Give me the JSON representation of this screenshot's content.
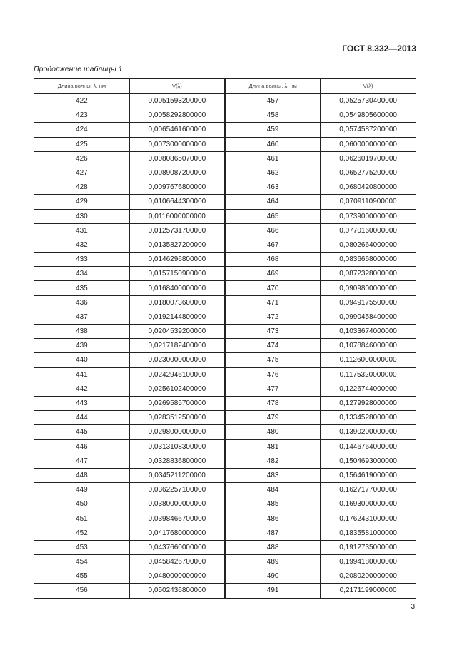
{
  "header": {
    "standard": "ГОСТ 8.332—2013"
  },
  "caption": "Продолжение таблицы 1",
  "table": {
    "columns": [
      "Длина волны, λ, нм",
      "V(λ)",
      "Длина волны, λ, нм",
      "V(λ)"
    ],
    "rows": [
      [
        "422",
        "0,0051593200000",
        "457",
        "0,0525730400000"
      ],
      [
        "423",
        "0,0058292800000",
        "458",
        "0,0549805600000"
      ],
      [
        "424",
        "0,0065461600000",
        "459",
        "0,0574587200000"
      ],
      [
        "425",
        "0,0073000000000",
        "460",
        "0,0600000000000"
      ],
      [
        "426",
        "0,0080865070000",
        "461",
        "0,0626019700000"
      ],
      [
        "427",
        "0,0089087200000",
        "462",
        "0,0652775200000"
      ],
      [
        "428",
        "0,0097676800000",
        "463",
        "0,0680420800000"
      ],
      [
        "429",
        "0,0106644300000",
        "464",
        "0,0709110900000"
      ],
      [
        "430",
        "0,0116000000000",
        "465",
        "0,0739000000000"
      ],
      [
        "431",
        "0,0125731700000",
        "466",
        "0,0770160000000"
      ],
      [
        "432",
        "0,0135827200000",
        "467",
        "0,0802664000000"
      ],
      [
        "433",
        "0,0146296800000",
        "468",
        "0,0836668000000"
      ],
      [
        "434",
        "0,0157150900000",
        "469",
        "0,0872328000000"
      ],
      [
        "435",
        "0,0168400000000",
        "470",
        "0,0909800000000"
      ],
      [
        "436",
        "0,0180073600000",
        "471",
        "0,0949175500000"
      ],
      [
        "437",
        "0,0192144800000",
        "472",
        "0,0990458400000"
      ],
      [
        "438",
        "0,0204539200000",
        "473",
        "0,1033674000000"
      ],
      [
        "439",
        "0,0217182400000",
        "474",
        "0,1078846000000"
      ],
      [
        "440",
        "0,0230000000000",
        "475",
        "0,1126000000000"
      ],
      [
        "441",
        "0,0242946100000",
        "476",
        "0,1175320000000"
      ],
      [
        "442",
        "0,0256102400000",
        "477",
        "0,1226744000000"
      ],
      [
        "443",
        "0,0269585700000",
        "478",
        "0,1279928000000"
      ],
      [
        "444",
        "0,0283512500000",
        "479",
        "0,1334528000000"
      ],
      [
        "445",
        "0,0298000000000",
        "480",
        "0,1390200000000"
      ],
      [
        "446",
        "0,0313108300000",
        "481",
        "0,1446764000000"
      ],
      [
        "447",
        "0,0328836800000",
        "482",
        "0,1504693000000"
      ],
      [
        "448",
        "0,0345211200000",
        "483",
        "0,1564619000000"
      ],
      [
        "449",
        "0,0362257100000",
        "484",
        "0,1627177000000"
      ],
      [
        "450",
        "0,0380000000000",
        "485",
        "0,1693000000000"
      ],
      [
        "451",
        "0,0398466700000",
        "486",
        "0,1762431000000"
      ],
      [
        "452",
        "0,0417680000000",
        "487",
        "0,1835581000000"
      ],
      [
        "453",
        "0,0437660000000",
        "488",
        "0,1912735000000"
      ],
      [
        "454",
        "0,0458426700000",
        "489",
        "0,1994180000000"
      ],
      [
        "455",
        "0,0480000000000",
        "490",
        "0,2080200000000"
      ],
      [
        "456",
        "0,0502436800000",
        "491",
        "0,2171199000000"
      ]
    ]
  },
  "footer": {
    "page_number": "3"
  }
}
